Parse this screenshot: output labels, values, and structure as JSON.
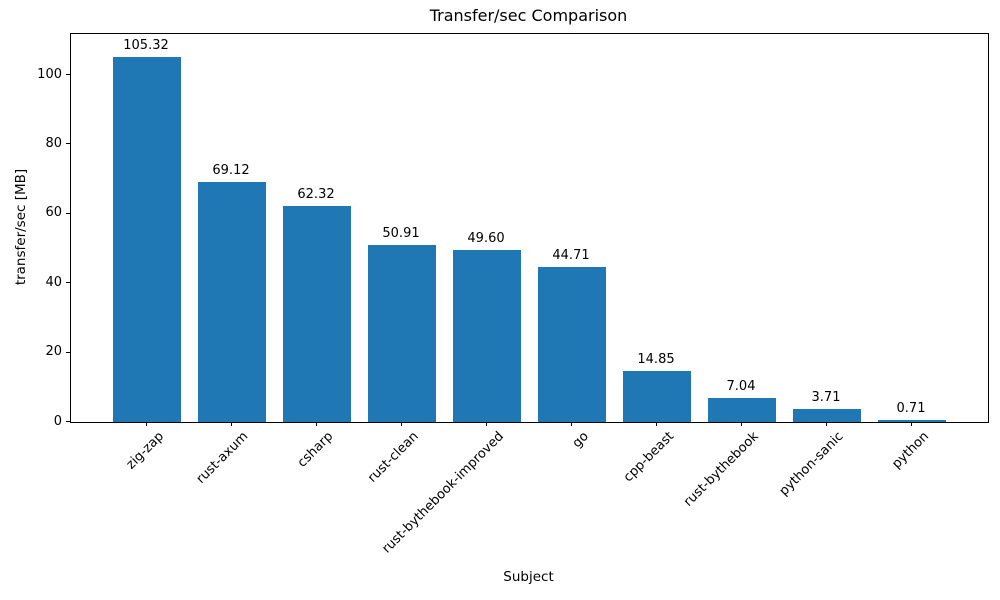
{
  "chart_data": {
    "type": "bar",
    "title": "Transfer/sec Comparison",
    "xlabel": "Subject",
    "ylabel": "transfer/sec [MB]",
    "categories": [
      "zig-zap",
      "rust-axum",
      "csharp",
      "rust-clean",
      "rust-bythebook-improved",
      "go",
      "cpp-beast",
      "rust-bythebook",
      "python-sanic",
      "python"
    ],
    "values": [
      105.32,
      69.12,
      62.32,
      50.91,
      49.6,
      44.71,
      14.85,
      7.04,
      3.71,
      0.71
    ],
    "value_labels": [
      "105.32",
      "69.12",
      "62.32",
      "50.91",
      "49.60",
      "44.71",
      "14.85",
      "7.04",
      "3.71",
      "0.71"
    ],
    "yticks": [
      0,
      20,
      40,
      60,
      80,
      100
    ],
    "ylim": [
      0,
      111.8
    ],
    "bar_color": "#1f77b4",
    "grid": false,
    "legend_position": "none",
    "xtick_rotation_deg": 45
  }
}
